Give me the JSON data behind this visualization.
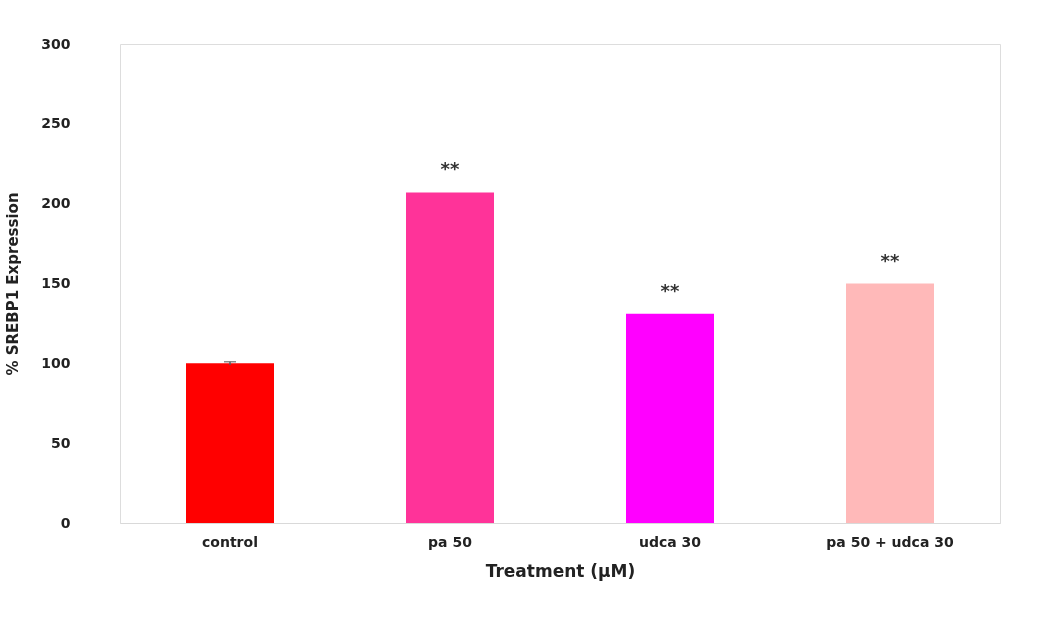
{
  "chart_data": {
    "type": "bar",
    "xlabel": "Treatment (µM)",
    "ylabel": "% SREBP1 Expression",
    "categories": [
      "control",
      "pa 50",
      "udca 30",
      "pa 50 + udca 30"
    ],
    "values": [
      100,
      207,
      131,
      150
    ],
    "colors": [
      "#ff0000",
      "#ff3399",
      "#ff00ff",
      "#ffb9b9"
    ],
    "errors": [
      1,
      null,
      null,
      null
    ],
    "ylim": [
      0,
      300
    ],
    "yticks": [
      0,
      50,
      100,
      150,
      200,
      250,
      300
    ],
    "grid": false,
    "legend": false,
    "annotations": [
      {
        "text": "**",
        "x": "pa 50",
        "y": 207
      },
      {
        "text": "**",
        "x": "udca 30",
        "y": 131
      },
      {
        "text": "**",
        "x": "pa 50 + udca 30",
        "y": 150
      }
    ]
  }
}
